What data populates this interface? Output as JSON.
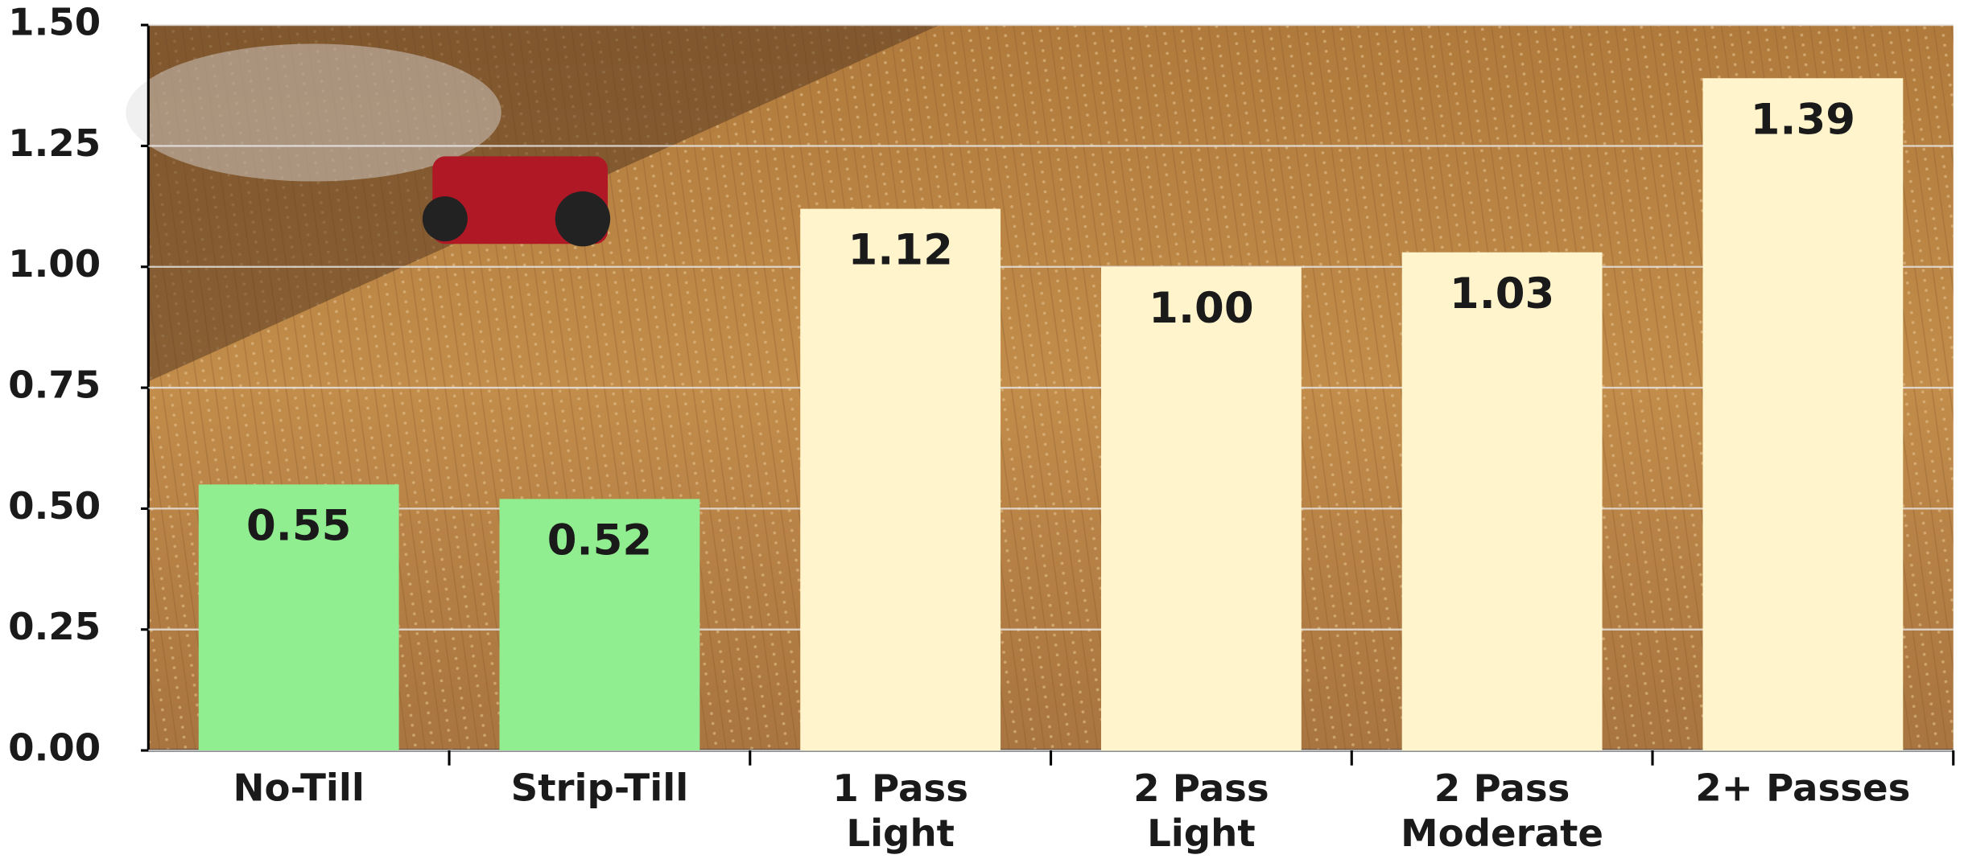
{
  "chart_data": {
    "type": "bar",
    "categories": [
      "No-Till",
      "Strip-Till",
      "1 Pass\nLight",
      "2 Pass\nLight",
      "2 Pass\nModerate",
      "2+ Passes"
    ],
    "values": [
      0.55,
      0.52,
      1.12,
      1.0,
      1.03,
      1.39
    ],
    "value_labels": [
      "0.55",
      "0.52",
      "1.12",
      "1.00",
      "1.03",
      "1.39"
    ],
    "colors": [
      "#90ee90",
      "#90ee90",
      "#fff4cc",
      "#fff4cc",
      "#fff4cc",
      "#fff4cc"
    ],
    "ylim": [
      0,
      1.5
    ],
    "yticks": [
      {
        "value": 0,
        "label": "0.00"
      },
      {
        "value": 0.25,
        "label": "0.25"
      },
      {
        "value": 0.5,
        "label": "0.50"
      },
      {
        "value": 0.75,
        "label": "0.75"
      },
      {
        "value": 1,
        "label": "1.00"
      },
      {
        "value": 1.25,
        "label": "1.25"
      },
      {
        "value": 1.5,
        "label": "1.50"
      }
    ],
    "grid": true
  }
}
